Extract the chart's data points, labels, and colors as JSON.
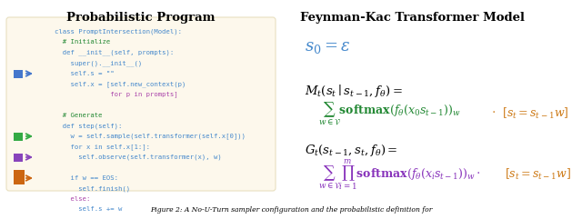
{
  "title_left": "Probabilistic Program",
  "title_right": "Feynman-Kac Transformer Model",
  "code_bg_color": "#fdf8ec",
  "code_border_color": "#e8e0c0",
  "fig_width": 6.4,
  "fig_height": 2.41,
  "dpi": 100,
  "caption": "Figure 2: A No-U-Turn sampler configuration and the probabilistic definition for",
  "arrow_colors": {
    "blue": "#4477cc",
    "green": "#33aa44",
    "purple": "#8844bb",
    "orange": "#cc6611"
  },
  "code_color_blue": "#4488cc",
  "code_color_green": "#228833",
  "code_color_purple": "#aa44aa",
  "math_color_blue": "#4488cc",
  "math_color_green": "#228833",
  "math_color_purple": "#8833bb",
  "math_color_orange": "#cc7711"
}
